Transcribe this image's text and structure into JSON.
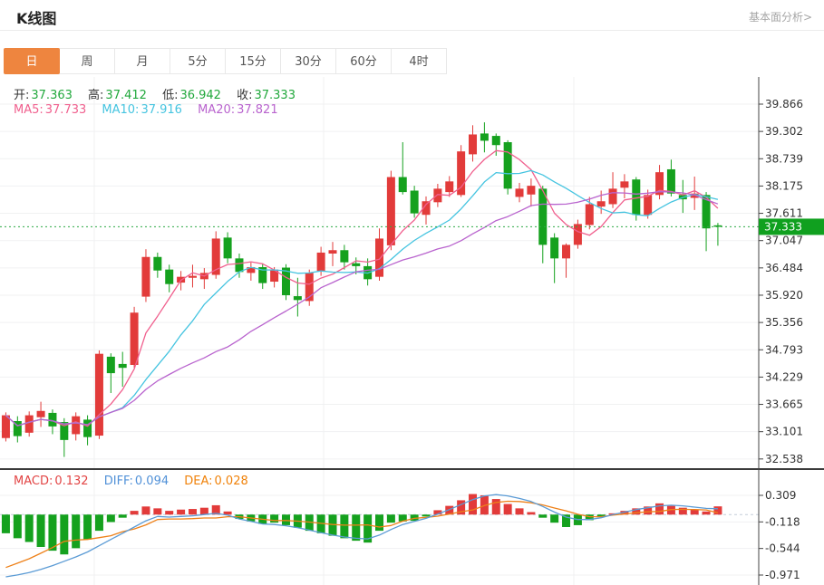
{
  "header": {
    "title": "K线图",
    "link": "基本面分析>"
  },
  "tabs": {
    "items": [
      "日",
      "周",
      "月",
      "5分",
      "15分",
      "30分",
      "60分",
      "4时"
    ],
    "active": 0
  },
  "colors": {
    "accent": "#ee853f",
    "up_red": "#e23b3a",
    "down_green": "#15a11e",
    "price_tag_green": "#10a01f",
    "axis_line": "#444444",
    "grid": "#f0f1f2",
    "link_gray": "#a6a6a6"
  },
  "legend": {
    "value_color": "#21a83c",
    "ohlc": [
      {
        "label": "开:",
        "value": "37.363"
      },
      {
        "label": "高:",
        "value": "37.412"
      },
      {
        "label": "低:",
        "value": "36.942"
      },
      {
        "label": "收:",
        "value": "37.333"
      }
    ],
    "ma": [
      {
        "label": "MA5:",
        "value": "37.733",
        "color": "#f0608e"
      },
      {
        "label": "MA10:",
        "value": "37.916",
        "color": "#45c4e0"
      },
      {
        "label": "MA20:",
        "value": "37.821",
        "color": "#b964ce"
      }
    ],
    "macd": [
      {
        "label": "MACD:",
        "value": "0.132",
        "color": "#e24444"
      },
      {
        "label": "DIFF:",
        "value": "0.094",
        "color": "#5191d8"
      },
      {
        "label": "DEA:",
        "value": "0.028",
        "color": "#f0820a"
      }
    ]
  },
  "chart_data": [
    {
      "type": "candlestick",
      "panel": "main",
      "title": "K线图 (daily)",
      "up_color": "#e23b3a",
      "down_color": "#15a11e",
      "y_ticks": [
        "39.866",
        "39.302",
        "38.739",
        "38.175",
        "37.611",
        "37.047",
        "36.484",
        "35.920",
        "35.356",
        "34.793",
        "34.229",
        "33.665",
        "33.101",
        "32.538"
      ],
      "ylim": [
        32.25,
        40.15
      ],
      "last_price": "37.333",
      "last_price_line_color": "#2ca944",
      "ma_series": [
        {
          "name": "MA5",
          "period": 5,
          "color": "#f0608e"
        },
        {
          "name": "MA10",
          "period": 10,
          "color": "#45c4e0"
        },
        {
          "name": "MA20",
          "period": 20,
          "color": "#b964ce"
        }
      ],
      "ohlc": [
        [
          32.97,
          33.5,
          32.9,
          33.44
        ],
        [
          33.32,
          33.42,
          32.88,
          33.01
        ],
        [
          33.08,
          33.52,
          33.0,
          33.44
        ],
        [
          33.4,
          33.72,
          33.2,
          33.53
        ],
        [
          33.49,
          33.56,
          33.05,
          33.21
        ],
        [
          33.3,
          33.38,
          32.58,
          32.93
        ],
        [
          33.05,
          33.5,
          32.92,
          33.42
        ],
        [
          33.35,
          33.44,
          32.82,
          32.99
        ],
        [
          33.02,
          34.78,
          32.95,
          34.71
        ],
        [
          34.65,
          34.72,
          33.9,
          34.31
        ],
        [
          34.5,
          34.75,
          34.03,
          34.42
        ],
        [
          34.48,
          35.68,
          34.42,
          35.56
        ],
        [
          35.89,
          36.87,
          35.78,
          36.71
        ],
        [
          36.71,
          36.8,
          36.28,
          36.43
        ],
        [
          36.45,
          36.55,
          35.98,
          36.15
        ],
        [
          36.18,
          36.42,
          36.02,
          36.3
        ],
        [
          36.28,
          36.55,
          36.08,
          36.32
        ],
        [
          36.25,
          36.48,
          36.05,
          36.38
        ],
        [
          36.34,
          37.24,
          36.26,
          37.09
        ],
        [
          37.11,
          37.22,
          36.58,
          36.68
        ],
        [
          36.68,
          36.78,
          36.28,
          36.4
        ],
        [
          36.38,
          36.6,
          36.22,
          36.5
        ],
        [
          36.5,
          36.58,
          36.05,
          36.17
        ],
        [
          36.2,
          36.5,
          36.08,
          36.45
        ],
        [
          36.49,
          36.56,
          35.82,
          35.92
        ],
        [
          35.9,
          36.28,
          35.48,
          35.82
        ],
        [
          35.8,
          36.45,
          35.7,
          36.38
        ],
        [
          36.42,
          36.92,
          36.32,
          36.8
        ],
        [
          36.78,
          37.02,
          36.52,
          36.85
        ],
        [
          36.85,
          36.96,
          36.45,
          36.6
        ],
        [
          36.58,
          36.7,
          36.35,
          36.52
        ],
        [
          36.52,
          36.68,
          36.12,
          36.25
        ],
        [
          36.3,
          37.3,
          36.22,
          37.09
        ],
        [
          36.95,
          38.49,
          36.85,
          38.36
        ],
        [
          38.36,
          39.08,
          38.0,
          38.05
        ],
        [
          38.08,
          38.18,
          37.52,
          37.61
        ],
        [
          37.58,
          37.96,
          37.38,
          37.86
        ],
        [
          37.84,
          38.22,
          37.74,
          38.12
        ],
        [
          38.05,
          38.38,
          37.95,
          38.27
        ],
        [
          37.99,
          39.02,
          37.95,
          38.89
        ],
        [
          38.83,
          39.43,
          38.68,
          39.24
        ],
        [
          39.26,
          39.49,
          38.87,
          39.11
        ],
        [
          39.21,
          39.26,
          38.8,
          39.02
        ],
        [
          39.08,
          39.12,
          38.0,
          38.12
        ],
        [
          37.95,
          38.24,
          37.84,
          38.12
        ],
        [
          38.0,
          38.33,
          37.75,
          38.18
        ],
        [
          38.12,
          38.18,
          36.58,
          36.96
        ],
        [
          37.11,
          37.2,
          36.17,
          36.68
        ],
        [
          36.68,
          36.99,
          36.28,
          36.96
        ],
        [
          36.96,
          37.48,
          36.88,
          37.39
        ],
        [
          37.37,
          37.95,
          37.28,
          37.8
        ],
        [
          37.75,
          38.08,
          37.6,
          37.86
        ],
        [
          37.8,
          38.46,
          37.72,
          38.12
        ],
        [
          38.14,
          38.42,
          37.92,
          38.27
        ],
        [
          38.31,
          38.36,
          37.46,
          37.58
        ],
        [
          37.58,
          38.1,
          37.5,
          37.99
        ],
        [
          37.99,
          38.61,
          37.9,
          38.46
        ],
        [
          38.52,
          38.72,
          37.96,
          38.02
        ],
        [
          37.99,
          38.3,
          37.62,
          37.9
        ],
        [
          37.93,
          38.37,
          37.68,
          38.02
        ],
        [
          37.99,
          38.05,
          36.83,
          37.3
        ],
        [
          37.363,
          37.412,
          36.942,
          37.333
        ]
      ]
    },
    {
      "type": "bar",
      "panel": "macd",
      "title": "MACD(12,26,9)",
      "y_ticks": [
        "0.309",
        "-0.118",
        "-0.544",
        "-0.971"
      ],
      "colors": {
        "positive": "#e23b3a",
        "negative": "#15a11e",
        "diff": "#5b9bd5",
        "dea": "#ee8119",
        "zero_dash": "#c3cdd9"
      },
      "macd": [
        -0.3,
        -0.38,
        -0.44,
        -0.52,
        -0.58,
        -0.64,
        -0.54,
        -0.4,
        -0.26,
        -0.12,
        -0.05,
        0.06,
        0.13,
        0.1,
        0.06,
        0.08,
        0.09,
        0.11,
        0.15,
        0.05,
        -0.07,
        -0.11,
        -0.15,
        -0.13,
        -0.17,
        -0.21,
        -0.26,
        -0.3,
        -0.34,
        -0.38,
        -0.42,
        -0.45,
        -0.26,
        -0.13,
        -0.11,
        -0.1,
        -0.03,
        0.07,
        0.14,
        0.23,
        0.33,
        0.31,
        0.25,
        0.17,
        0.1,
        0.04,
        -0.05,
        -0.13,
        -0.2,
        -0.17,
        -0.09,
        -0.03,
        0.02,
        0.06,
        0.1,
        0.13,
        0.18,
        0.14,
        0.11,
        0.08,
        0.05,
        0.132
      ],
      "diff": [
        -1.0,
        -0.97,
        -0.93,
        -0.88,
        -0.82,
        -0.75,
        -0.68,
        -0.6,
        -0.5,
        -0.4,
        -0.3,
        -0.2,
        -0.1,
        -0.03,
        -0.04,
        -0.03,
        -0.02,
        0.0,
        0.02,
        -0.01,
        -0.07,
        -0.11,
        -0.15,
        -0.16,
        -0.18,
        -0.21,
        -0.25,
        -0.29,
        -0.33,
        -0.36,
        -0.38,
        -0.39,
        -0.33,
        -0.24,
        -0.16,
        -0.11,
        -0.06,
        0.01,
        0.08,
        0.16,
        0.24,
        0.3,
        0.32,
        0.3,
        0.26,
        0.21,
        0.13,
        0.04,
        -0.04,
        -0.08,
        -0.08,
        -0.05,
        0.0,
        0.04,
        0.08,
        0.11,
        0.14,
        0.15,
        0.14,
        0.12,
        0.1,
        0.094
      ]
    }
  ]
}
